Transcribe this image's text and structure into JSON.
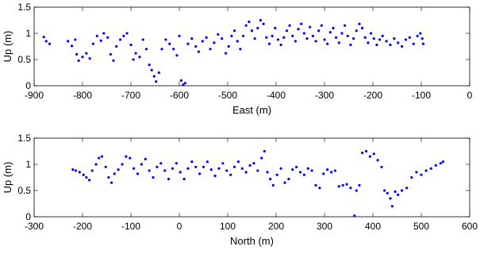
{
  "chart_data": [
    {
      "type": "scatter",
      "xlabel": "East (m)",
      "ylabel": "Up (m)",
      "xlim": [
        -900,
        0
      ],
      "ylim": [
        0,
        1.5
      ],
      "xticks": [
        "-900",
        "-800",
        "-700",
        "-600",
        "-500",
        "-400",
        "-300",
        "-200",
        "-100",
        "0"
      ],
      "yticks": [
        "0",
        "0.5",
        "1",
        "1.5"
      ],
      "marker_color": "#0000ff",
      "series": [
        {
          "points": [
            [
              -880,
              0.93
            ],
            [
              -875,
              0.85
            ],
            [
              -868,
              0.8
            ],
            [
              -830,
              0.85
            ],
            [
              -822,
              0.76
            ],
            [
              -815,
              0.88
            ],
            [
              -812,
              0.6
            ],
            [
              -808,
              0.48
            ],
            [
              -800,
              0.55
            ],
            [
              -792,
              0.62
            ],
            [
              -785,
              0.52
            ],
            [
              -778,
              0.8
            ],
            [
              -770,
              0.95
            ],
            [
              -762,
              0.86
            ],
            [
              -756,
              1.0
            ],
            [
              -748,
              0.92
            ],
            [
              -742,
              0.6
            ],
            [
              -736,
              0.48
            ],
            [
              -730,
              0.75
            ],
            [
              -722,
              0.88
            ],
            [
              -715,
              0.95
            ],
            [
              -708,
              1.0
            ],
            [
              -700,
              0.78
            ],
            [
              -695,
              0.5
            ],
            [
              -690,
              0.62
            ],
            [
              -682,
              0.55
            ],
            [
              -675,
              0.88
            ],
            [
              -668,
              0.7
            ],
            [
              -662,
              0.4
            ],
            [
              -657,
              0.3
            ],
            [
              -652,
              0.18
            ],
            [
              -648,
              0.08
            ],
            [
              -642,
              0.25
            ],
            [
              -636,
              0.7
            ],
            [
              -628,
              0.88
            ],
            [
              -620,
              0.8
            ],
            [
              -612,
              0.7
            ],
            [
              -605,
              0.58
            ],
            [
              -600,
              0.95
            ],
            [
              -596,
              0.1
            ],
            [
              -592,
              0.02
            ],
            [
              -588,
              0.05
            ],
            [
              -582,
              0.8
            ],
            [
              -574,
              0.9
            ],
            [
              -566,
              0.75
            ],
            [
              -560,
              0.65
            ],
            [
              -552,
              0.85
            ],
            [
              -544,
              0.92
            ],
            [
              -536,
              0.7
            ],
            [
              -528,
              0.82
            ],
            [
              -520,
              0.98
            ],
            [
              -512,
              0.9
            ],
            [
              -504,
              0.62
            ],
            [
              -498,
              0.75
            ],
            [
              -492,
              0.95
            ],
            [
              -486,
              1.05
            ],
            [
              -480,
              0.85
            ],
            [
              -474,
              0.7
            ],
            [
              -468,
              0.95
            ],
            [
              -462,
              1.15
            ],
            [
              -456,
              1.22
            ],
            [
              -450,
              1.05
            ],
            [
              -444,
              0.9
            ],
            [
              -438,
              1.1
            ],
            [
              -432,
              1.25
            ],
            [
              -426,
              1.18
            ],
            [
              -420,
              0.92
            ],
            [
              -414,
              0.8
            ],
            [
              -408,
              0.95
            ],
            [
              -402,
              1.1
            ],
            [
              -396,
              0.88
            ],
            [
              -390,
              0.78
            ],
            [
              -384,
              0.92
            ],
            [
              -378,
              1.05
            ],
            [
              -372,
              1.15
            ],
            [
              -366,
              0.95
            ],
            [
              -360,
              0.85
            ],
            [
              -354,
              1.08
            ],
            [
              -348,
              1.18
            ],
            [
              -342,
              1.0
            ],
            [
              -336,
              0.9
            ],
            [
              -330,
              1.12
            ],
            [
              -324,
              0.95
            ],
            [
              -318,
              0.85
            ],
            [
              -312,
              1.05
            ],
            [
              -306,
              1.15
            ],
            [
              -300,
              0.88
            ],
            [
              -294,
              0.8
            ],
            [
              -288,
              1.02
            ],
            [
              -282,
              1.1
            ],
            [
              -276,
              0.92
            ],
            [
              -270,
              0.82
            ],
            [
              -264,
              1.0
            ],
            [
              -258,
              1.15
            ],
            [
              -252,
              0.95
            ],
            [
              -246,
              0.78
            ],
            [
              -240,
              0.9
            ],
            [
              -234,
              1.05
            ],
            [
              -228,
              1.18
            ],
            [
              -222,
              1.1
            ],
            [
              -216,
              0.92
            ],
            [
              -210,
              0.82
            ],
            [
              -204,
              1.0
            ],
            [
              -198,
              0.9
            ],
            [
              -192,
              0.78
            ],
            [
              -186,
              0.88
            ],
            [
              -180,
              0.95
            ],
            [
              -172,
              0.85
            ],
            [
              -164,
              0.78
            ],
            [
              -156,
              0.9
            ],
            [
              -148,
              0.82
            ],
            [
              -140,
              0.75
            ],
            [
              -132,
              0.88
            ],
            [
              -124,
              0.92
            ],
            [
              -116,
              0.8
            ],
            [
              -108,
              0.95
            ],
            [
              -102,
              1.0
            ],
            [
              -98,
              0.9
            ],
            [
              -96,
              0.8
            ]
          ]
        }
      ]
    },
    {
      "type": "scatter",
      "xlabel": "North (m)",
      "ylabel": "Up (m)",
      "xlim": [
        -300,
        600
      ],
      "ylim": [
        0,
        1.5
      ],
      "xticks": [
        "-300",
        "-200",
        "-100",
        "0",
        "100",
        "200",
        "300",
        "400",
        "500",
        "600"
      ],
      "yticks": [
        "0",
        "0.5",
        "1",
        "1.5"
      ],
      "marker_color": "#0000ff",
      "series": [
        {
          "points": [
            [
              -220,
              0.9
            ],
            [
              -214,
              0.88
            ],
            [
              -206,
              0.85
            ],
            [
              -198,
              0.8
            ],
            [
              -192,
              0.75
            ],
            [
              -186,
              0.7
            ],
            [
              -180,
              0.88
            ],
            [
              -172,
              1.0
            ],
            [
              -166,
              1.12
            ],
            [
              -160,
              1.15
            ],
            [
              -152,
              0.95
            ],
            [
              -146,
              0.75
            ],
            [
              -140,
              0.65
            ],
            [
              -134,
              0.82
            ],
            [
              -126,
              0.9
            ],
            [
              -118,
              1.0
            ],
            [
              -110,
              1.15
            ],
            [
              -102,
              1.12
            ],
            [
              -94,
              0.92
            ],
            [
              -86,
              0.82
            ],
            [
              -78,
              1.0
            ],
            [
              -70,
              1.1
            ],
            [
              -62,
              0.88
            ],
            [
              -54,
              0.75
            ],
            [
              -46,
              0.95
            ],
            [
              -38,
              1.02
            ],
            [
              -30,
              0.88
            ],
            [
              -22,
              0.72
            ],
            [
              -14,
              0.92
            ],
            [
              -6,
              1.02
            ],
            [
              2,
              0.85
            ],
            [
              10,
              0.72
            ],
            [
              18,
              0.92
            ],
            [
              26,
              1.05
            ],
            [
              34,
              0.95
            ],
            [
              42,
              0.82
            ],
            [
              50,
              0.95
            ],
            [
              58,
              1.05
            ],
            [
              66,
              0.9
            ],
            [
              74,
              0.78
            ],
            [
              82,
              0.92
            ],
            [
              90,
              1.02
            ],
            [
              98,
              0.88
            ],
            [
              106,
              0.8
            ],
            [
              114,
              0.95
            ],
            [
              122,
              1.05
            ],
            [
              130,
              0.92
            ],
            [
              138,
              0.85
            ],
            [
              146,
              0.98
            ],
            [
              154,
              1.02
            ],
            [
              162,
              0.88
            ],
            [
              170,
              1.12
            ],
            [
              176,
              1.25
            ],
            [
              182,
              0.85
            ],
            [
              188,
              0.72
            ],
            [
              194,
              0.6
            ],
            [
              202,
              0.8
            ],
            [
              210,
              0.92
            ],
            [
              218,
              0.65
            ],
            [
              226,
              0.72
            ],
            [
              234,
              0.9
            ],
            [
              242,
              0.95
            ],
            [
              250,
              0.85
            ],
            [
              258,
              0.8
            ],
            [
              266,
              0.92
            ],
            [
              274,
              0.88
            ],
            [
              282,
              0.6
            ],
            [
              290,
              0.55
            ],
            [
              298,
              0.82
            ],
            [
              306,
              0.9
            ],
            [
              314,
              0.85
            ],
            [
              322,
              0.88
            ],
            [
              330,
              0.58
            ],
            [
              338,
              0.6
            ],
            [
              346,
              0.62
            ],
            [
              354,
              0.55
            ],
            [
              362,
              0.02
            ],
            [
              366,
              0.5
            ],
            [
              372,
              0.6
            ],
            [
              378,
              1.22
            ],
            [
              386,
              1.25
            ],
            [
              394,
              1.15
            ],
            [
              402,
              1.2
            ],
            [
              410,
              1.08
            ],
            [
              418,
              0.95
            ],
            [
              424,
              0.5
            ],
            [
              430,
              0.45
            ],
            [
              436,
              0.35
            ],
            [
              440,
              0.2
            ],
            [
              446,
              0.48
            ],
            [
              452,
              0.42
            ],
            [
              460,
              0.5
            ],
            [
              470,
              0.55
            ],
            [
              480,
              0.75
            ],
            [
              490,
              0.85
            ],
            [
              500,
              0.8
            ],
            [
              510,
              0.88
            ],
            [
              520,
              0.92
            ],
            [
              530,
              0.98
            ],
            [
              540,
              1.02
            ],
            [
              545,
              1.05
            ]
          ]
        }
      ]
    }
  ]
}
